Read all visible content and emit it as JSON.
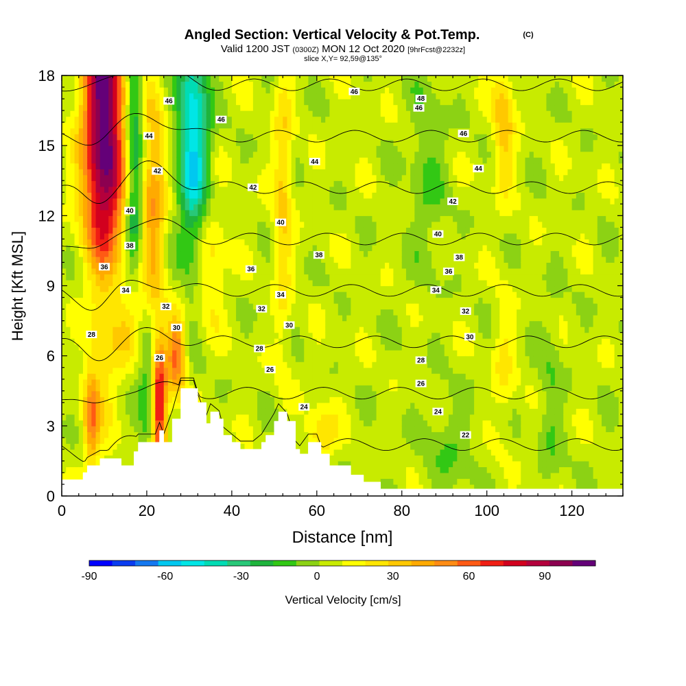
{
  "chart_data": {
    "type": "heatmap",
    "title": "Angled Section: Vertical Velocity & Pot.Temp.",
    "title_mark": "(C)",
    "subtitle_parts": [
      "Valid 1200 JST",
      "(0300Z)",
      "MON 12 Oct 2020",
      "[9hrFcst@2232z]"
    ],
    "slice_label": "slice X,Y= 92,59@135°",
    "xlabel": "Distance [nm]",
    "ylabel": "Height [Kft MSL]",
    "xlim": [
      0,
      132
    ],
    "ylim": [
      0,
      18
    ],
    "x_ticks": [
      0,
      20,
      40,
      60,
      80,
      100,
      120
    ],
    "y_ticks": [
      0,
      3,
      6,
      9,
      12,
      15,
      18
    ],
    "colorbar": {
      "label": "Vertical Velocity [cm/s]",
      "tick_labels": [
        "-90",
        "-60",
        "-30",
        "0",
        "30",
        "60",
        "90"
      ],
      "tick_values": [
        -90,
        -60,
        -30,
        0,
        30,
        60,
        90
      ],
      "range": [
        -90,
        110
      ],
      "colors": [
        "#0000ff",
        "#0a3cf0",
        "#1478f0",
        "#00c8f0",
        "#00e6e6",
        "#00dcb4",
        "#28c878",
        "#1eb43c",
        "#32c814",
        "#8cd214",
        "#c8eb00",
        "#ffff00",
        "#ffe600",
        "#ffc800",
        "#ffaa00",
        "#ff8c14",
        "#ff5a14",
        "#f01e14",
        "#d2001e",
        "#b4003c",
        "#8c0050",
        "#640078"
      ]
    },
    "contour_series_name": "Pot.Temp.",
    "contour_labels": [
      {
        "value": "46",
        "x": 25.2,
        "y": 16.9
      },
      {
        "value": "46",
        "x": 37.5,
        "y": 16.1
      },
      {
        "value": "46",
        "x": 84,
        "y": 16.6
      },
      {
        "value": "46",
        "x": 94.5,
        "y": 15.5
      },
      {
        "value": "46",
        "x": 68.8,
        "y": 17.3
      },
      {
        "value": "48",
        "x": 84.5,
        "y": 17.0
      },
      {
        "value": "44",
        "x": 20.5,
        "y": 15.4
      },
      {
        "value": "44",
        "x": 59.5,
        "y": 14.3
      },
      {
        "value": "44",
        "x": 98,
        "y": 14.0
      },
      {
        "value": "42",
        "x": 22.5,
        "y": 13.9
      },
      {
        "value": "42",
        "x": 45,
        "y": 13.2
      },
      {
        "value": "42",
        "x": 92,
        "y": 12.6
      },
      {
        "value": "40",
        "x": 16,
        "y": 12.2
      },
      {
        "value": "40",
        "x": 51.5,
        "y": 11.7
      },
      {
        "value": "40",
        "x": 88.5,
        "y": 11.2
      },
      {
        "value": "38",
        "x": 16,
        "y": 10.7
      },
      {
        "value": "38",
        "x": 60.5,
        "y": 10.3
      },
      {
        "value": "38",
        "x": 93.5,
        "y": 10.2
      },
      {
        "value": "36",
        "x": 10,
        "y": 9.8
      },
      {
        "value": "36",
        "x": 44.5,
        "y": 9.7
      },
      {
        "value": "36",
        "x": 91,
        "y": 9.6
      },
      {
        "value": "34",
        "x": 15,
        "y": 8.8
      },
      {
        "value": "34",
        "x": 51.5,
        "y": 8.6
      },
      {
        "value": "34",
        "x": 88,
        "y": 8.8
      },
      {
        "value": "32",
        "x": 24.5,
        "y": 8.1
      },
      {
        "value": "32",
        "x": 47,
        "y": 8.0
      },
      {
        "value": "32",
        "x": 95,
        "y": 7.9
      },
      {
        "value": "30",
        "x": 27,
        "y": 7.2
      },
      {
        "value": "30",
        "x": 53.5,
        "y": 7.3
      },
      {
        "value": "30",
        "x": 96,
        "y": 6.8
      },
      {
        "value": "28",
        "x": 7,
        "y": 6.9
      },
      {
        "value": "28",
        "x": 46.5,
        "y": 6.3
      },
      {
        "value": "28",
        "x": 84.5,
        "y": 5.8
      },
      {
        "value": "26",
        "x": 23,
        "y": 5.9
      },
      {
        "value": "26",
        "x": 49,
        "y": 5.4
      },
      {
        "value": "26",
        "x": 84.5,
        "y": 4.8
      },
      {
        "value": "24",
        "x": 57,
        "y": 3.8
      },
      {
        "value": "24",
        "x": 88.5,
        "y": 3.6
      },
      {
        "value": "22",
        "x": 95,
        "y": 2.6
      }
    ],
    "theta_levels": [
      22,
      24,
      26,
      28,
      30,
      32,
      34,
      36,
      38,
      40,
      42,
      44,
      46,
      48
    ],
    "terrain_profile": [
      [
        0,
        0.7
      ],
      [
        5,
        1.0
      ],
      [
        6,
        1.3
      ],
      [
        9,
        1.6
      ],
      [
        13,
        1.6
      ],
      [
        14,
        1.3
      ],
      [
        16,
        1.3
      ],
      [
        17,
        1.9
      ],
      [
        18,
        2.3
      ],
      [
        22,
        2.3
      ],
      [
        23,
        2.8
      ],
      [
        24,
        2.3
      ],
      [
        26,
        3.3
      ],
      [
        28,
        4.6
      ],
      [
        31,
        4.6
      ],
      [
        32,
        4.0
      ],
      [
        34,
        3.1
      ],
      [
        35,
        3.6
      ],
      [
        37,
        3.3
      ],
      [
        38,
        2.6
      ],
      [
        40,
        2.3
      ],
      [
        42,
        2.0
      ],
      [
        45,
        2.0
      ],
      [
        47,
        2.3
      ],
      [
        48,
        2.6
      ],
      [
        50,
        3.2
      ],
      [
        51,
        3.6
      ],
      [
        53,
        3.2
      ],
      [
        55,
        2.0
      ],
      [
        56,
        1.8
      ],
      [
        58,
        2.3
      ],
      [
        60,
        2.3
      ],
      [
        61,
        1.8
      ],
      [
        63,
        1.3
      ],
      [
        68,
        0.9
      ],
      [
        71,
        0.6
      ],
      [
        75,
        0.3
      ],
      [
        132,
        0.3
      ]
    ],
    "velocity_features": [
      {
        "x": 10,
        "y": 15.5,
        "sx": 3.5,
        "sy": 6.0,
        "v": 105
      },
      {
        "x": 7,
        "y": 3.2,
        "sx": 1.2,
        "sy": 1.5,
        "v": 40
      },
      {
        "x": 23,
        "y": 3.8,
        "sx": 1.2,
        "sy": 2.0,
        "v": 75
      },
      {
        "x": 27,
        "y": 6.0,
        "sx": 1.5,
        "sy": 1.2,
        "v": 55
      },
      {
        "x": 21.5,
        "y": 12.5,
        "sx": 2.0,
        "sy": 3.5,
        "v": 40
      },
      {
        "x": 17,
        "y": 7.5,
        "sx": 2.0,
        "sy": 1.5,
        "v": 35
      },
      {
        "x": 34,
        "y": 10.0,
        "sx": 3.0,
        "sy": 2.0,
        "v": 25
      },
      {
        "x": 17,
        "y": 15.0,
        "sx": 1.5,
        "sy": 6.0,
        "v": -40
      },
      {
        "x": 31,
        "y": 15.0,
        "sx": 2.5,
        "sy": 4.0,
        "v": -60
      },
      {
        "x": 10,
        "y": 9.0,
        "sx": 4.0,
        "sy": 2.0,
        "v": -30
      },
      {
        "x": 20,
        "y": 4.5,
        "sx": 1.5,
        "sy": 2.5,
        "v": -25
      },
      {
        "x": 52,
        "y": 13.0,
        "sx": 1.5,
        "sy": 4.5,
        "v": 25
      },
      {
        "x": 61,
        "y": 2.6,
        "sx": 2.5,
        "sy": 0.8,
        "v": 25
      },
      {
        "x": 104,
        "y": 16.0,
        "sx": 1.8,
        "sy": 2.0,
        "v": 30
      },
      {
        "x": 104,
        "y": 5.5,
        "sx": 1.8,
        "sy": 2.0,
        "v": 15
      },
      {
        "x": 115,
        "y": 4.0,
        "sx": 2.0,
        "sy": 3.0,
        "v": -12
      },
      {
        "x": 86,
        "y": 14.0,
        "sx": 3.0,
        "sy": 3.0,
        "v": -14
      },
      {
        "x": 91,
        "y": 2.0,
        "sx": 4.0,
        "sy": 1.5,
        "v": -12
      }
    ]
  }
}
